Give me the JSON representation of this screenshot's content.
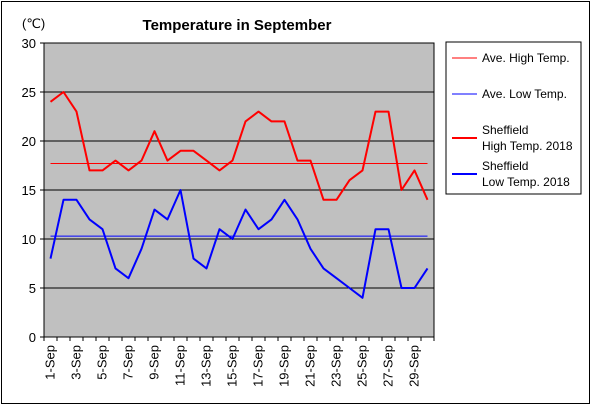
{
  "chart_data": {
    "type": "line",
    "title": "Temperature in September",
    "unit": "(℃)",
    "xlabel": "",
    "ylabel": "",
    "ylim": [
      0,
      30
    ],
    "yticks": [
      0,
      5,
      10,
      15,
      20,
      25,
      30
    ],
    "grid": true,
    "legend_position": "right",
    "background_color": "#c0c0c0",
    "categories": [
      "1-Sep",
      "2-Sep",
      "3-Sep",
      "4-Sep",
      "5-Sep",
      "6-Sep",
      "7-Sep",
      "8-Sep",
      "9-Sep",
      "10-Sep",
      "11-Sep",
      "12-Sep",
      "13-Sep",
      "14-Sep",
      "15-Sep",
      "16-Sep",
      "17-Sep",
      "18-Sep",
      "19-Sep",
      "20-Sep",
      "21-Sep",
      "22-Sep",
      "23-Sep",
      "24-Sep",
      "25-Sep",
      "26-Sep",
      "27-Sep",
      "28-Sep",
      "29-Sep",
      "30-Sep"
    ],
    "tick_labels": [
      "1-Sep",
      "3-Sep",
      "5-Sep",
      "7-Sep",
      "9-Sep",
      "11-Sep",
      "13-Sep",
      "15-Sep",
      "17-Sep",
      "19-Sep",
      "21-Sep",
      "23-Sep",
      "25-Sep",
      "27-Sep",
      "29-Sep"
    ],
    "series": [
      {
        "name": "Ave. High Temp.",
        "color": "#ff0000",
        "width": 1,
        "values": [
          17.7,
          17.7,
          17.7,
          17.7,
          17.7,
          17.7,
          17.7,
          17.7,
          17.7,
          17.7,
          17.7,
          17.7,
          17.7,
          17.7,
          17.7,
          17.7,
          17.7,
          17.7,
          17.7,
          17.7,
          17.7,
          17.7,
          17.7,
          17.7,
          17.7,
          17.7,
          17.7,
          17.7,
          17.7,
          17.7
        ]
      },
      {
        "name": "Ave. Low Temp.",
        "color": "#0000ff",
        "width": 1,
        "values": [
          10.3,
          10.3,
          10.3,
          10.3,
          10.3,
          10.3,
          10.3,
          10.3,
          10.3,
          10.3,
          10.3,
          10.3,
          10.3,
          10.3,
          10.3,
          10.3,
          10.3,
          10.3,
          10.3,
          10.3,
          10.3,
          10.3,
          10.3,
          10.3,
          10.3,
          10.3,
          10.3,
          10.3,
          10.3,
          10.3
        ]
      },
      {
        "name": "Sheffield High Temp. 2018",
        "legend_lines": [
          "Sheffield",
          "High Temp. 2018"
        ],
        "color": "#ff0000",
        "width": 2,
        "values": [
          24,
          25,
          23,
          17,
          17,
          18,
          17,
          18,
          21,
          18,
          19,
          19,
          18,
          17,
          18,
          22,
          23,
          22,
          22,
          18,
          18,
          14,
          14,
          16,
          17,
          23,
          23,
          15,
          17,
          14
        ]
      },
      {
        "name": "Sheffield Low Temp. 2018",
        "legend_lines": [
          "Sheffield",
          "Low Temp. 2018"
        ],
        "color": "#0000ff",
        "width": 2,
        "values": [
          8,
          14,
          14,
          12,
          11,
          7,
          6,
          9,
          13,
          12,
          15,
          8,
          7,
          11,
          10,
          13,
          11,
          12,
          14,
          12,
          9,
          7,
          6,
          5,
          4,
          11,
          11,
          5,
          5,
          7
        ]
      }
    ]
  }
}
